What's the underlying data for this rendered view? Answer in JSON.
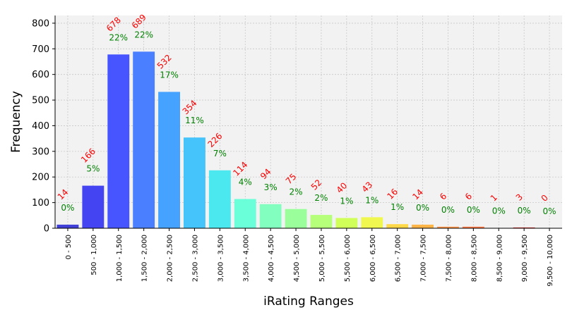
{
  "chart_data": {
    "type": "bar",
    "xlabel": "iRating Ranges",
    "ylabel": "Frequency",
    "ylim": [
      0,
      830
    ],
    "yticks": [
      0,
      100,
      200,
      300,
      400,
      500,
      600,
      700,
      800
    ],
    "grid": true,
    "categories": [
      "0 - 500",
      "500 - 1,000",
      "1,000 - 1,500",
      "1,500 - 2,000",
      "2,000 - 2,500",
      "2,500 - 3,000",
      "3,000 - 3,500",
      "3,500 - 4,000",
      "4,000 - 4,500",
      "4,500 - 5,000",
      "5,000 - 5,500",
      "5,500 - 6,000",
      "6,000 - 6,500",
      "6,500 - 7,000",
      "7,000 - 7,500",
      "7,500 - 8,000",
      "8,000 - 8,500",
      "8,500 - 9,000",
      "9,000 - 9,500",
      "9,500 - 10,000"
    ],
    "values": [
      14,
      166,
      678,
      689,
      532,
      354,
      226,
      114,
      94,
      75,
      52,
      40,
      43,
      16,
      14,
      6,
      6,
      1,
      3,
      0
    ],
    "count_labels": [
      "14",
      "166",
      "678",
      "689",
      "532",
      "354",
      "226",
      "114",
      "94",
      "75",
      "52",
      "40",
      "43",
      "16",
      "14",
      "6",
      "6",
      "1",
      "3",
      "0"
    ],
    "percent_labels": [
      "0%",
      "5%",
      "22%",
      "22%",
      "17%",
      "11%",
      "7%",
      "4%",
      "3%",
      "2%",
      "2%",
      "1%",
      "1%",
      "1%",
      "0%",
      "0%",
      "0%",
      "0%",
      "0%",
      "0%"
    ],
    "colors": [
      "#4040d8",
      "#4444f2",
      "#4655ff",
      "#4a80ff",
      "#45a2ff",
      "#44c4fa",
      "#4ce8f0",
      "#6affd8",
      "#82ffbe",
      "#9aff9a",
      "#b6ff7a",
      "#d0ff5a",
      "#f0f850",
      "#ffd84a",
      "#ffb448",
      "#ff9446",
      "#ff7844",
      "#ff5c42",
      "#e83030",
      "#c81818"
    ],
    "count_label_color": "#ff0000",
    "percent_label_color": "#008000",
    "plot_background": "#f2f2f2"
  }
}
